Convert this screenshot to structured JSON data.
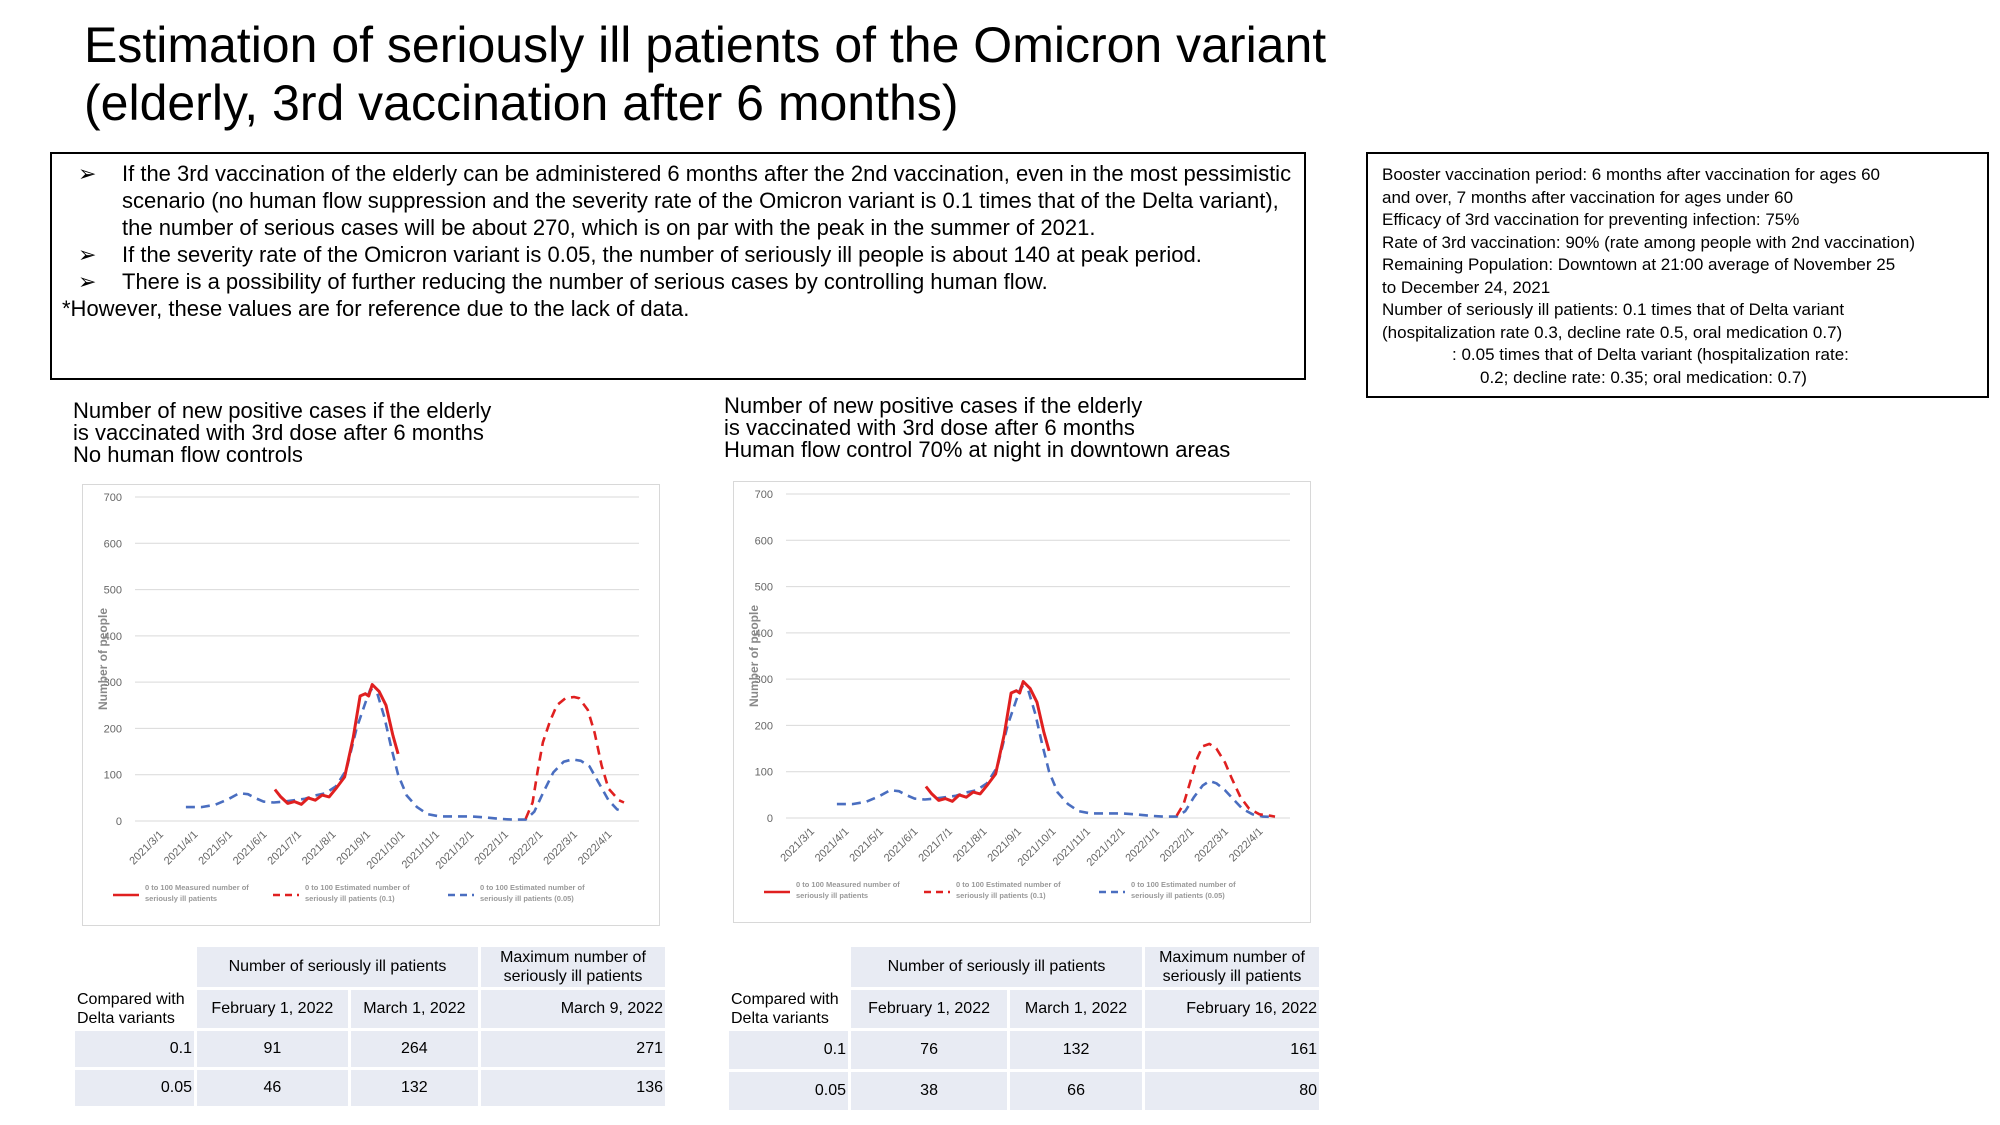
{
  "title": {
    "line1": "Estimation of seriously ill patients of the Omicron variant",
    "line2": "(elderly, 3rd vaccination after 6 months)"
  },
  "summary": {
    "bullet_symbol": "➢",
    "bullets": [
      "If the 3rd vaccination of the elderly can be administered 6 months after the 2nd vaccination, even in the most pessimistic scenario (no human flow suppression and the severity rate of the Omicron variant is 0.1 times that of the Delta variant), the number of serious cases will be about 270, which is on par with the peak in the summer of 2021.",
      "If the severity rate of the Omicron variant is 0.05, the number of seriously ill people is about 140 at peak period.",
      "There is a possibility of further reducing the number of serious cases by controlling human flow."
    ],
    "note": "*However, these values are for reference due to the lack of data."
  },
  "params": {
    "lines": [
      "Booster vaccination period: 6 months after vaccination for ages 60",
      "and over, 7 months after vaccination for ages under 60",
      "Efficacy of 3rd vaccination for preventing infection: 75%",
      "Rate of 3rd vaccination: 90% (rate among people with 2nd vaccination)",
      "Remaining Population: Downtown at 21:00 average of November 25",
      "to December 24, 2021",
      "Number of seriously ill patients: 0.1 times that of Delta variant",
      "(hospitalization rate 0.3, decline rate 0.5, oral medication 0.7)"
    ],
    "indent_line1": ": 0.05 times that of Delta variant (hospitalization rate:",
    "indent_line2": "0.2; decline rate: 0.35; oral medication: 0.7)"
  },
  "left": {
    "heading": [
      "Number of new positive cases if the elderly",
      "is vaccinated with 3rd dose after 6 months",
      "No human flow controls"
    ],
    "table": {
      "header_group": "Number of seriously ill patients",
      "header_max": "Maximum number of seriously ill patients",
      "row_label": "Compared with Delta variants",
      "dates": [
        "February 1, 2022",
        "March 1, 2022",
        "March 9, 2022"
      ],
      "rows": [
        {
          "ratio": "0.1",
          "v1": "91",
          "v2": "264",
          "v3": "271"
        },
        {
          "ratio": "0.05",
          "v1": "46",
          "v2": "132",
          "v3": "136"
        }
      ]
    }
  },
  "right": {
    "heading": [
      "Number of new positive cases if the elderly",
      "is vaccinated with 3rd dose after 6 months",
      "Human flow control 70% at night in downtown areas"
    ],
    "table": {
      "header_group": "Number of seriously ill patients",
      "header_max": "Maximum number of seriously ill patients",
      "row_label": "Compared with Delta variants",
      "dates": [
        "February 1, 2022",
        "March 1, 2022",
        "February 16, 2022"
      ],
      "rows": [
        {
          "ratio": "0.1",
          "v1": "76",
          "v2": "132",
          "v3": "161"
        },
        {
          "ratio": "0.05",
          "v1": "38",
          "v2": "66",
          "v3": "80"
        }
      ]
    }
  },
  "chart_data": [
    {
      "type": "line",
      "title": "",
      "ylabel": "Number of people",
      "xlabel": "",
      "ylim": [
        0,
        700
      ],
      "yticks": [
        0,
        100,
        200,
        300,
        400,
        500,
        600,
        700
      ],
      "x_categories": [
        "2021/3/1",
        "2021/4/1",
        "2021/5/1",
        "2021/6/1",
        "2021/7/1",
        "2021/8/1",
        "2021/9/1",
        "2021/10/1",
        "2021/11/1",
        "2021/12/1",
        "2022/1/1",
        "2022/2/1",
        "2022/3/1",
        "2022/4/1"
      ],
      "grid": true,
      "legend_position": "bottom",
      "series": [
        {
          "name": "0 to 100 Measured number of seriously ill patients",
          "color": "#e02020",
          "style": "solid",
          "points": [
            [
              3.33,
              68
            ],
            [
              3.5,
              52
            ],
            [
              3.7,
              38
            ],
            [
              3.9,
              42
            ],
            [
              4.1,
              36
            ],
            [
              4.3,
              50
            ],
            [
              4.5,
              45
            ],
            [
              4.7,
              56
            ],
            [
              4.9,
              52
            ],
            [
              5.1,
              70
            ],
            [
              5.35,
              95
            ],
            [
              5.6,
              180
            ],
            [
              5.8,
              270
            ],
            [
              5.95,
              275
            ],
            [
              6.05,
              270
            ],
            [
              6.15,
              295
            ],
            [
              6.35,
              280
            ],
            [
              6.55,
              250
            ],
            [
              6.75,
              185
            ],
            [
              6.9,
              145
            ]
          ]
        },
        {
          "name": "0 to 100 Estimated number of seriously ill patients (0.1)",
          "color": "#e02020",
          "style": "dashed",
          "points": [
            [
              10.6,
              5
            ],
            [
              10.8,
              40
            ],
            [
              10.95,
              110
            ],
            [
              11.1,
              170
            ],
            [
              11.3,
              215
            ],
            [
              11.5,
              250
            ],
            [
              11.75,
              265
            ],
            [
              12.0,
              268
            ],
            [
              12.15,
              265
            ],
            [
              12.4,
              240
            ],
            [
              12.6,
              190
            ],
            [
              12.8,
              120
            ],
            [
              13.0,
              70
            ],
            [
              13.3,
              45
            ],
            [
              13.45,
              40
            ]
          ]
        },
        {
          "name": "0 to 100 Estimated number of seriously ill patients (0.05)",
          "color": "#4a6ec0",
          "style": "dashed",
          "points": [
            [
              0.75,
              30
            ],
            [
              1.2,
              30
            ],
            [
              1.6,
              35
            ],
            [
              2.0,
              48
            ],
            [
              2.3,
              60
            ],
            [
              2.55,
              58
            ],
            [
              2.75,
              50
            ],
            [
              3.0,
              42
            ],
            [
              3.3,
              40
            ],
            [
              3.6,
              42
            ],
            [
              3.9,
              45
            ],
            [
              4.2,
              48
            ],
            [
              4.5,
              55
            ],
            [
              4.8,
              60
            ],
            [
              5.1,
              75
            ],
            [
              5.4,
              110
            ],
            [
              5.7,
              200
            ],
            [
              5.95,
              255
            ],
            [
              6.1,
              285
            ],
            [
              6.3,
              275
            ],
            [
              6.5,
              225
            ],
            [
              6.7,
              160
            ],
            [
              6.9,
              100
            ],
            [
              7.15,
              55
            ],
            [
              7.45,
              30
            ],
            [
              7.75,
              15
            ],
            [
              8.1,
              10
            ],
            [
              8.6,
              10
            ],
            [
              9.0,
              10
            ],
            [
              9.4,
              8
            ],
            [
              9.8,
              5
            ],
            [
              10.2,
              3
            ],
            [
              10.6,
              3
            ],
            [
              10.85,
              20
            ],
            [
              11.1,
              60
            ],
            [
              11.4,
              105
            ],
            [
              11.7,
              128
            ],
            [
              11.95,
              133
            ],
            [
              12.2,
              130
            ],
            [
              12.45,
              118
            ],
            [
              12.7,
              85
            ],
            [
              13.0,
              45
            ],
            [
              13.25,
              25
            ],
            [
              13.45,
              20
            ]
          ]
        }
      ]
    },
    {
      "type": "line",
      "title": "",
      "ylabel": "Number of people",
      "xlabel": "",
      "ylim": [
        0,
        700
      ],
      "yticks": [
        0,
        100,
        200,
        300,
        400,
        500,
        600,
        700
      ],
      "x_categories": [
        "2021/3/1",
        "2021/4/1",
        "2021/5/1",
        "2021/6/1",
        "2021/7/1",
        "2021/8/1",
        "2021/9/1",
        "2021/10/1",
        "2021/11/1",
        "2021/12/1",
        "2022/1/1",
        "2022/2/1",
        "2022/3/1",
        "2022/4/1"
      ],
      "grid": true,
      "legend_position": "bottom",
      "series": [
        {
          "name": "0 to 100 Measured number of seriously ill patients",
          "color": "#e02020",
          "style": "solid",
          "points": [
            [
              3.33,
              68
            ],
            [
              3.5,
              52
            ],
            [
              3.7,
              38
            ],
            [
              3.9,
              42
            ],
            [
              4.1,
              36
            ],
            [
              4.3,
              50
            ],
            [
              4.5,
              45
            ],
            [
              4.7,
              56
            ],
            [
              4.9,
              52
            ],
            [
              5.1,
              70
            ],
            [
              5.35,
              95
            ],
            [
              5.6,
              180
            ],
            [
              5.8,
              270
            ],
            [
              5.95,
              275
            ],
            [
              6.05,
              270
            ],
            [
              6.15,
              295
            ],
            [
              6.35,
              280
            ],
            [
              6.55,
              250
            ],
            [
              6.75,
              185
            ],
            [
              6.9,
              145
            ]
          ]
        },
        {
          "name": "0 to 100 Estimated number of seriously ill patients (0.1)",
          "color": "#e02020",
          "style": "dashed",
          "points": [
            [
              10.6,
              5
            ],
            [
              10.8,
              30
            ],
            [
              11.0,
              80
            ],
            [
              11.2,
              130
            ],
            [
              11.35,
              155
            ],
            [
              11.55,
              160
            ],
            [
              11.75,
              150
            ],
            [
              12.0,
              120
            ],
            [
              12.2,
              85
            ],
            [
              12.45,
              45
            ],
            [
              12.7,
              20
            ],
            [
              13.0,
              8
            ],
            [
              13.3,
              5
            ],
            [
              13.45,
              3
            ]
          ]
        },
        {
          "name": "0 to 100 Estimated number of seriously ill patients (0.05)",
          "color": "#4a6ec0",
          "style": "dashed",
          "points": [
            [
              0.75,
              30
            ],
            [
              1.2,
              30
            ],
            [
              1.6,
              35
            ],
            [
              2.0,
              48
            ],
            [
              2.3,
              60
            ],
            [
              2.55,
              58
            ],
            [
              2.75,
              50
            ],
            [
              3.0,
              42
            ],
            [
              3.3,
              40
            ],
            [
              3.6,
              42
            ],
            [
              3.9,
              45
            ],
            [
              4.2,
              48
            ],
            [
              4.5,
              55
            ],
            [
              4.8,
              60
            ],
            [
              5.1,
              75
            ],
            [
              5.4,
              110
            ],
            [
              5.7,
              200
            ],
            [
              5.95,
              255
            ],
            [
              6.1,
              285
            ],
            [
              6.3,
              275
            ],
            [
              6.5,
              225
            ],
            [
              6.7,
              160
            ],
            [
              6.9,
              100
            ],
            [
              7.15,
              55
            ],
            [
              7.45,
              30
            ],
            [
              7.75,
              15
            ],
            [
              8.1,
              10
            ],
            [
              8.6,
              10
            ],
            [
              9.0,
              10
            ],
            [
              9.4,
              8
            ],
            [
              9.8,
              5
            ],
            [
              10.2,
              3
            ],
            [
              10.6,
              3
            ],
            [
              10.85,
              15
            ],
            [
              11.1,
              45
            ],
            [
              11.35,
              70
            ],
            [
              11.55,
              80
            ],
            [
              11.75,
              75
            ],
            [
              12.0,
              60
            ],
            [
              12.25,
              40
            ],
            [
              12.5,
              20
            ],
            [
              12.8,
              8
            ],
            [
              13.1,
              3
            ],
            [
              13.45,
              2
            ]
          ]
        }
      ]
    }
  ]
}
